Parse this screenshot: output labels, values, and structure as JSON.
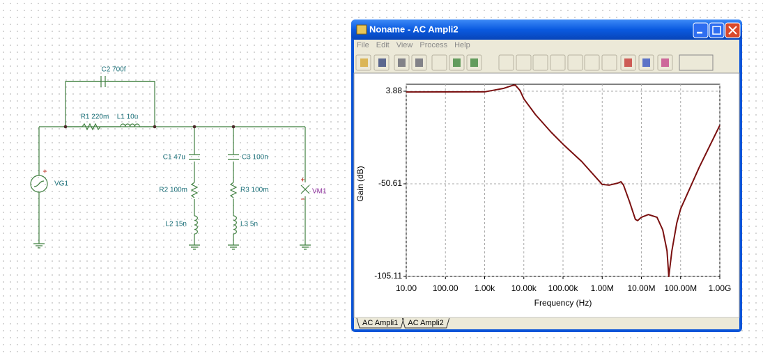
{
  "schematic": {
    "labels": {
      "c2": "C2 700f",
      "r1": "R1 220m",
      "l1": "L1 10u",
      "c1": "C1 47u",
      "r2": "R2 100m",
      "l2": "L2 15n",
      "c3": "C3 100n",
      "r3": "R3 100m",
      "l3": "L3 5n",
      "vg1": "VG1",
      "vm1": "VM1"
    }
  },
  "window": {
    "title": "Noname - AC Ampli2",
    "menu": [
      "File",
      "Edit",
      "View",
      "Process",
      "Help"
    ],
    "tabs": [
      "AC Ampli1",
      "AC Ampli2"
    ]
  },
  "chart_data": {
    "type": "line",
    "xlabel": "Frequency (Hz)",
    "ylabel": "Gain (dB)",
    "log_x": true,
    "color": "#7a1010",
    "grid": true,
    "x": [
      10,
      1000,
      3000,
      5000,
      6000,
      8000,
      10000,
      20000,
      50000,
      100000,
      300000,
      1000000,
      1500000,
      2500000,
      3000000,
      3500000,
      5000000,
      7000000,
      8000000,
      10000000,
      15000000,
      25000000,
      35000000,
      45000000,
      50000000,
      60000000,
      80000000,
      100000000,
      300000000,
      1000000000
    ],
    "values": [
      3.4,
      3.5,
      5.5,
      7.2,
      7.6,
      4.3,
      -0.6,
      -10,
      -20.3,
      -27.3,
      -37.5,
      -51,
      -51.4,
      -50.2,
      -49.4,
      -51.4,
      -61.3,
      -71.5,
      -72.3,
      -70.3,
      -68.7,
      -70.3,
      -77.7,
      -90,
      -105.11,
      -90,
      -73.6,
      -65.4,
      -40.8,
      -16.2
    ],
    "xlim": [
      10,
      1000000000
    ],
    "ylim": [
      -105.11,
      3.88
    ],
    "xticks": [
      {
        "value": 10,
        "label": "10.00"
      },
      {
        "value": 100,
        "label": "100.00"
      },
      {
        "value": 1000,
        "label": "1.00k"
      },
      {
        "value": 10000,
        "label": "10.00k"
      },
      {
        "value": 100000,
        "label": "100.00k"
      },
      {
        "value": 1000000,
        "label": "1.00M"
      },
      {
        "value": 10000000,
        "label": "10.00M"
      },
      {
        "value": 100000000,
        "label": "100.00M"
      },
      {
        "value": 1000000000,
        "label": "1.00G"
      }
    ],
    "yticks": [
      3.88,
      -50.61,
      -105.11
    ]
  }
}
